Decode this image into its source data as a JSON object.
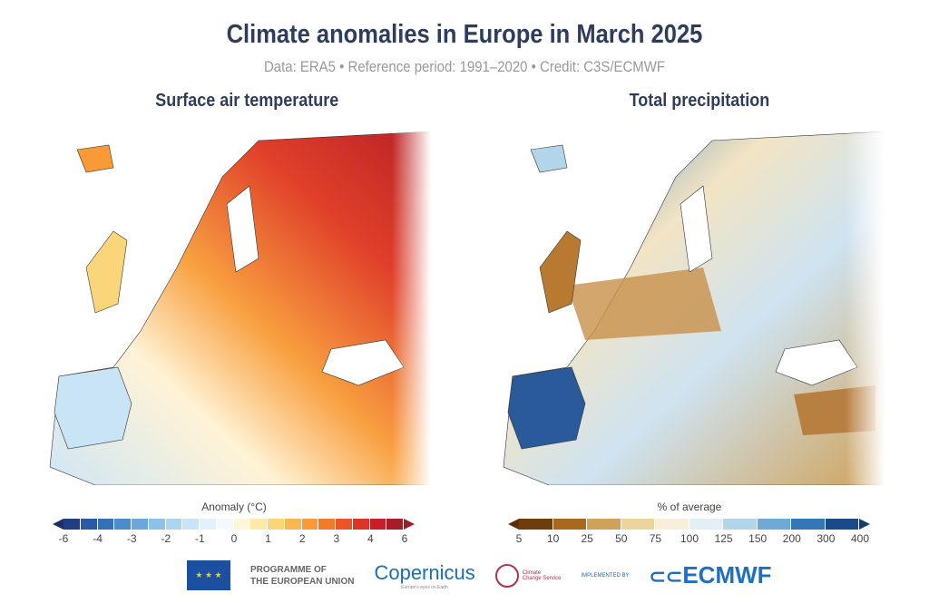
{
  "title": "Climate anomalies in Europe in March 2025",
  "subtitle": "Data: ERA5 • Reference period: 1991–2020 • Credit: C3S/ECMWF",
  "panels": [
    {
      "title": "Surface air temperature",
      "colorbar_label": "Anomaly (°C)",
      "ticks": [
        "-6",
        "-4",
        "-3",
        "-2",
        "-1",
        "0",
        "1",
        "2",
        "3",
        "4",
        "6"
      ],
      "colors": [
        "#1f3f80",
        "#2a5aa5",
        "#3670b8",
        "#4a8ccc",
        "#69a8dc",
        "#8cc2e8",
        "#acd6f0",
        "#c9e5f5",
        "#e2f1fa",
        "#f3f9fd",
        "#fff6da",
        "#fde9a8",
        "#fbd57a",
        "#fbb752",
        "#f89a38",
        "#f37a29",
        "#e95528",
        "#dc3427",
        "#c71f2a",
        "#a81c26"
      ],
      "arrow_left": "#1c2f6b",
      "arrow_right": "#a01a24"
    },
    {
      "title": "Total precipitation",
      "colorbar_label": "% of average",
      "ticks": [
        "5",
        "10",
        "25",
        "50",
        "75",
        "100",
        "125",
        "150",
        "200",
        "300",
        "400"
      ],
      "colors": [
        "#6e3d0c",
        "#a8691e",
        "#cfa25a",
        "#ecd49c",
        "#f7efd9",
        "#e3eef7",
        "#b3d5ea",
        "#6eaad5",
        "#3378b6",
        "#1b4a8a"
      ],
      "arrow_left": "#5a300a",
      "arrow_right": "#153c73"
    }
  ],
  "logos": {
    "eu_text_1": "PROGRAMME OF",
    "eu_text_2": "THE EUROPEAN UNION",
    "copernicus": "opernicus",
    "copernicus_tagline": "Europe's eyes on Earth",
    "c3s_1": "Climate",
    "c3s_2": "Change Service",
    "implemented_by": "IMPLEMENTED BY",
    "ecmwf": "ECMWF"
  }
}
